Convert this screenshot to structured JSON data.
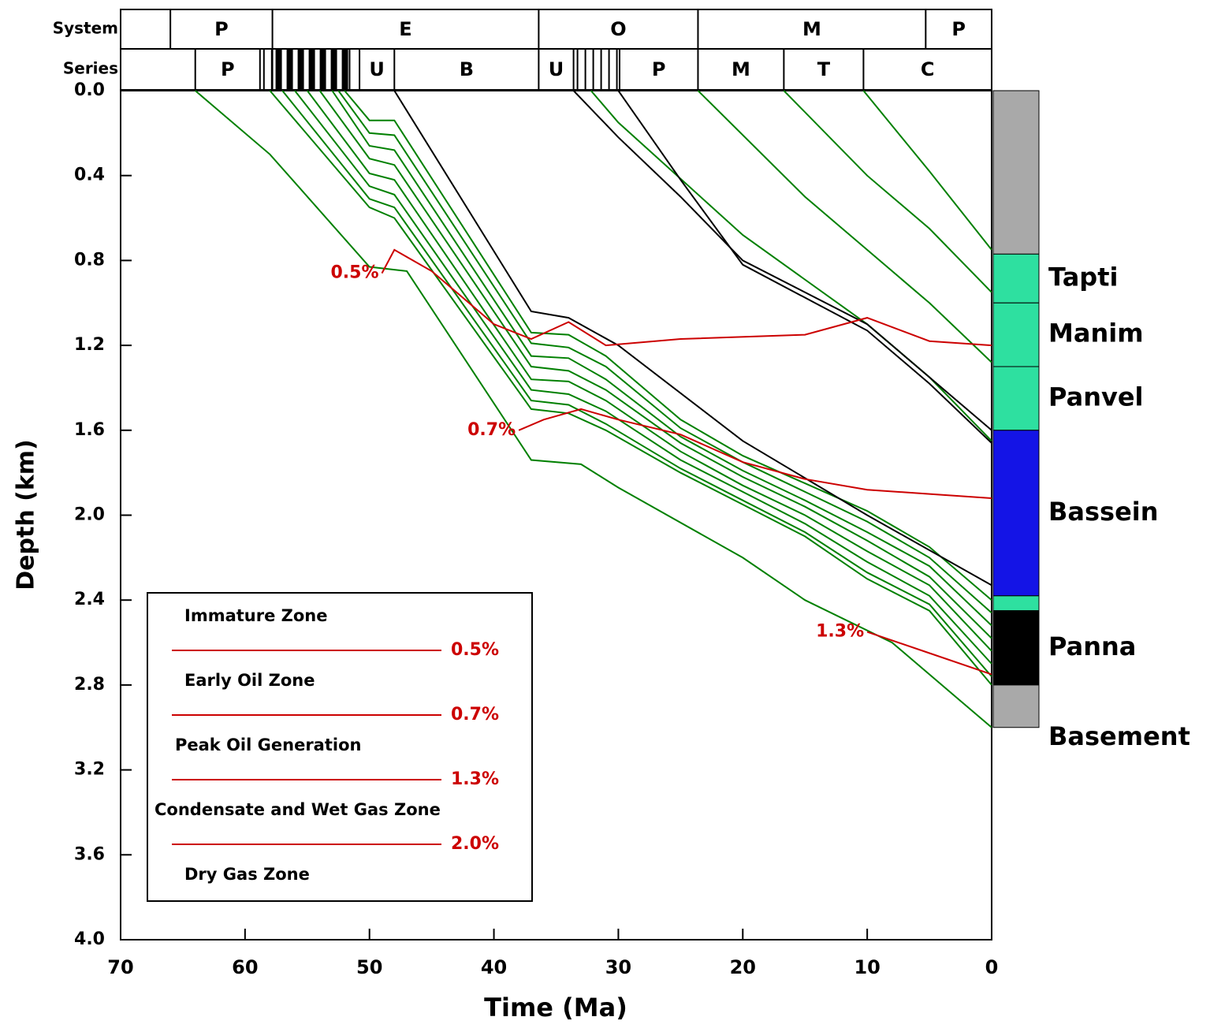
{
  "chart_data": {
    "type": "line",
    "xlabel": "Time (Ma)",
    "ylabel": "Depth (km)",
    "xlim": [
      70,
      0
    ],
    "xticks": [
      70,
      60,
      50,
      40,
      30,
      20,
      10,
      0
    ],
    "ylim": [
      0,
      4
    ],
    "yticks": [
      {
        "value": 0,
        "label": "0.0"
      },
      {
        "value": 0.4,
        "label": "0.4"
      },
      {
        "value": 0.8,
        "label": "0.8"
      },
      {
        "value": 1.2,
        "label": "1.2"
      },
      {
        "value": 1.6,
        "label": "1.6"
      },
      {
        "value": 2.0,
        "label": "2.0"
      },
      {
        "value": 2.4,
        "label": "2.4"
      },
      {
        "value": 2.8,
        "label": "2.8"
      },
      {
        "value": 3.2,
        "label": "3.2"
      },
      {
        "value": 3.6,
        "label": "3.6"
      },
      {
        "value": 4.0,
        "label": "4.0"
      }
    ],
    "timescale": {
      "system": {
        "label": "System",
        "names": [
          null,
          "P",
          "E",
          "O",
          "M",
          "P"
        ],
        "bounds": [
          70,
          66,
          57.8,
          36.4,
          23.6,
          5.3,
          0
        ],
        "fills": [
          null,
          null,
          null,
          null,
          null,
          null
        ]
      },
      "series": {
        "label": "Series",
        "names": [
          null,
          "P",
          null,
          null,
          null,
          "U",
          "B",
          "U",
          null,
          "P",
          "M",
          "T",
          "C"
        ],
        "bounds": [
          70,
          64,
          58.8,
          57.8,
          51.6,
          50.8,
          48,
          36.4,
          33.6,
          29.9,
          23.6,
          16.7,
          10.3,
          0
        ],
        "fills": [
          null,
          null,
          "thin-stripes",
          "bold-stripes",
          null,
          null,
          null,
          null,
          "thin-stripes",
          null,
          null,
          null,
          null
        ]
      }
    },
    "series": [
      {
        "color": "#008000",
        "x": [
          64,
          58,
          50,
          47,
          37,
          33,
          30,
          20,
          15,
          8,
          0
        ],
        "values": [
          0,
          0.3,
          0.83,
          0.85,
          1.74,
          1.76,
          1.87,
          2.2,
          2.4,
          2.6,
          3.0
        ]
      },
      {
        "color": "#008000",
        "x": [
          52,
          50,
          48,
          37,
          34,
          31,
          25,
          20,
          15,
          10,
          5,
          0
        ],
        "values": [
          0,
          0.14,
          0.14,
          1.14,
          1.15,
          1.25,
          1.55,
          1.72,
          1.85,
          1.98,
          2.15,
          2.4
        ]
      },
      {
        "color": "#008000",
        "x": [
          52.5,
          50,
          48,
          37,
          34,
          31,
          25,
          20,
          15,
          10,
          5,
          0
        ],
        "values": [
          0,
          0.2,
          0.21,
          1.19,
          1.21,
          1.3,
          1.59,
          1.75,
          1.89,
          2.03,
          2.2,
          2.46
        ]
      },
      {
        "color": "#008000",
        "x": [
          53,
          50,
          48,
          37,
          34,
          31,
          25,
          20,
          15,
          10,
          5,
          0
        ],
        "values": [
          0,
          0.26,
          0.28,
          1.25,
          1.26,
          1.36,
          1.63,
          1.79,
          1.93,
          2.08,
          2.24,
          2.52
        ]
      },
      {
        "color": "#008000",
        "x": [
          54,
          50,
          48,
          37,
          34,
          31,
          25,
          20,
          15,
          10,
          5,
          0
        ],
        "values": [
          0,
          0.32,
          0.35,
          1.3,
          1.32,
          1.41,
          1.66,
          1.82,
          1.96,
          2.12,
          2.29,
          2.58
        ]
      },
      {
        "color": "#008000",
        "x": [
          55,
          50,
          48,
          37,
          34,
          31,
          25,
          20,
          15,
          10,
          5,
          0
        ],
        "values": [
          0,
          0.39,
          0.42,
          1.36,
          1.37,
          1.46,
          1.7,
          1.86,
          2.0,
          2.17,
          2.33,
          2.64
        ]
      },
      {
        "color": "#008000",
        "x": [
          56,
          50,
          48,
          37,
          34,
          31,
          25,
          20,
          15,
          10,
          5,
          0
        ],
        "values": [
          0,
          0.45,
          0.49,
          1.41,
          1.43,
          1.51,
          1.74,
          1.89,
          2.04,
          2.22,
          2.38,
          2.7
        ]
      },
      {
        "color": "#008000",
        "x": [
          57,
          50,
          48,
          37,
          34,
          31,
          25,
          20,
          15,
          10,
          5,
          0
        ],
        "values": [
          0,
          0.51,
          0.55,
          1.46,
          1.48,
          1.57,
          1.78,
          1.93,
          2.08,
          2.27,
          2.42,
          2.76
        ]
      },
      {
        "color": "#008000",
        "x": [
          58,
          50,
          48,
          37,
          34,
          31,
          25,
          20,
          15,
          10,
          5,
          0
        ],
        "values": [
          0,
          0.55,
          0.6,
          1.5,
          1.52,
          1.6,
          1.8,
          1.95,
          2.1,
          2.3,
          2.45,
          2.8
        ]
      },
      {
        "color": "#008000",
        "x": [
          32.2,
          30,
          20,
          10,
          5,
          0
        ],
        "values": [
          0,
          0.15,
          0.68,
          1.1,
          1.35,
          1.65
        ]
      },
      {
        "color": "#008000",
        "x": [
          23.6,
          15,
          10,
          5,
          0
        ],
        "values": [
          0,
          0.5,
          0.75,
          1.0,
          1.28
        ]
      },
      {
        "color": "#008000",
        "x": [
          16.7,
          10,
          5,
          0
        ],
        "values": [
          0,
          0.4,
          0.65,
          0.95
        ]
      },
      {
        "color": "#008000",
        "x": [
          10.3,
          5,
          0
        ],
        "values": [
          0,
          0.38,
          0.75
        ]
      },
      {
        "color": "#000000",
        "x": [
          48,
          37,
          34,
          30,
          20,
          10,
          0
        ],
        "values": [
          0,
          1.04,
          1.07,
          1.2,
          1.65,
          2.0,
          2.33
        ]
      },
      {
        "color": "#000000",
        "x": [
          33.6,
          30,
          25,
          20,
          10,
          0
        ],
        "values": [
          0,
          0.22,
          0.5,
          0.8,
          1.1,
          1.6
        ]
      },
      {
        "color": "#000000",
        "x": [
          30,
          25,
          20,
          10,
          5,
          0
        ],
        "values": [
          0,
          0.42,
          0.82,
          1.13,
          1.38,
          1.66
        ]
      },
      {
        "name": "0.5%",
        "color": "#cc0000",
        "x": [
          49,
          48,
          45,
          40,
          37,
          34,
          31,
          25,
          15,
          10,
          5,
          0
        ],
        "values": [
          0.86,
          0.75,
          0.85,
          1.1,
          1.17,
          1.09,
          1.2,
          1.17,
          1.15,
          1.07,
          1.18,
          1.2
        ]
      },
      {
        "name": "0.7%",
        "color": "#cc0000",
        "x": [
          38,
          36,
          33,
          30,
          25,
          20,
          15,
          10,
          5,
          0
        ],
        "values": [
          1.6,
          1.55,
          1.5,
          1.55,
          1.62,
          1.75,
          1.83,
          1.88,
          1.9,
          1.92
        ]
      },
      {
        "name": "1.3%",
        "color": "#cc0000",
        "x": [
          10,
          5,
          0
        ],
        "values": [
          2.55,
          2.65,
          2.75
        ]
      }
    ],
    "lithology": {
      "names": [
        null,
        "Tapti",
        "Manim",
        "Panvel",
        "Bassein",
        null,
        "Panna",
        "Basement"
      ],
      "tops": [
        0,
        0.77,
        1.0,
        1.3,
        1.6,
        2.38,
        2.45,
        2.8
      ],
      "bases": [
        0.77,
        1.0,
        1.3,
        1.6,
        2.38,
        2.45,
        2.8,
        3.0
      ],
      "colors": [
        "#a9a9a9",
        "#2ee0a0",
        "#2ee0a0",
        "#2ee0a0",
        "#1414e6",
        "#2ee0a0",
        "#000000",
        "#a9a9a9"
      ]
    },
    "legend": {
      "zones": [
        "Immature Zone",
        "Early Oil Zone",
        "Peak Oil Generation",
        "Condensate and Wet Gas Zone",
        "Dry Gas Zone"
      ],
      "levels": [
        "0.5%",
        "0.7%",
        "1.3%",
        "2.0%"
      ],
      "color": "#cc0000"
    }
  }
}
